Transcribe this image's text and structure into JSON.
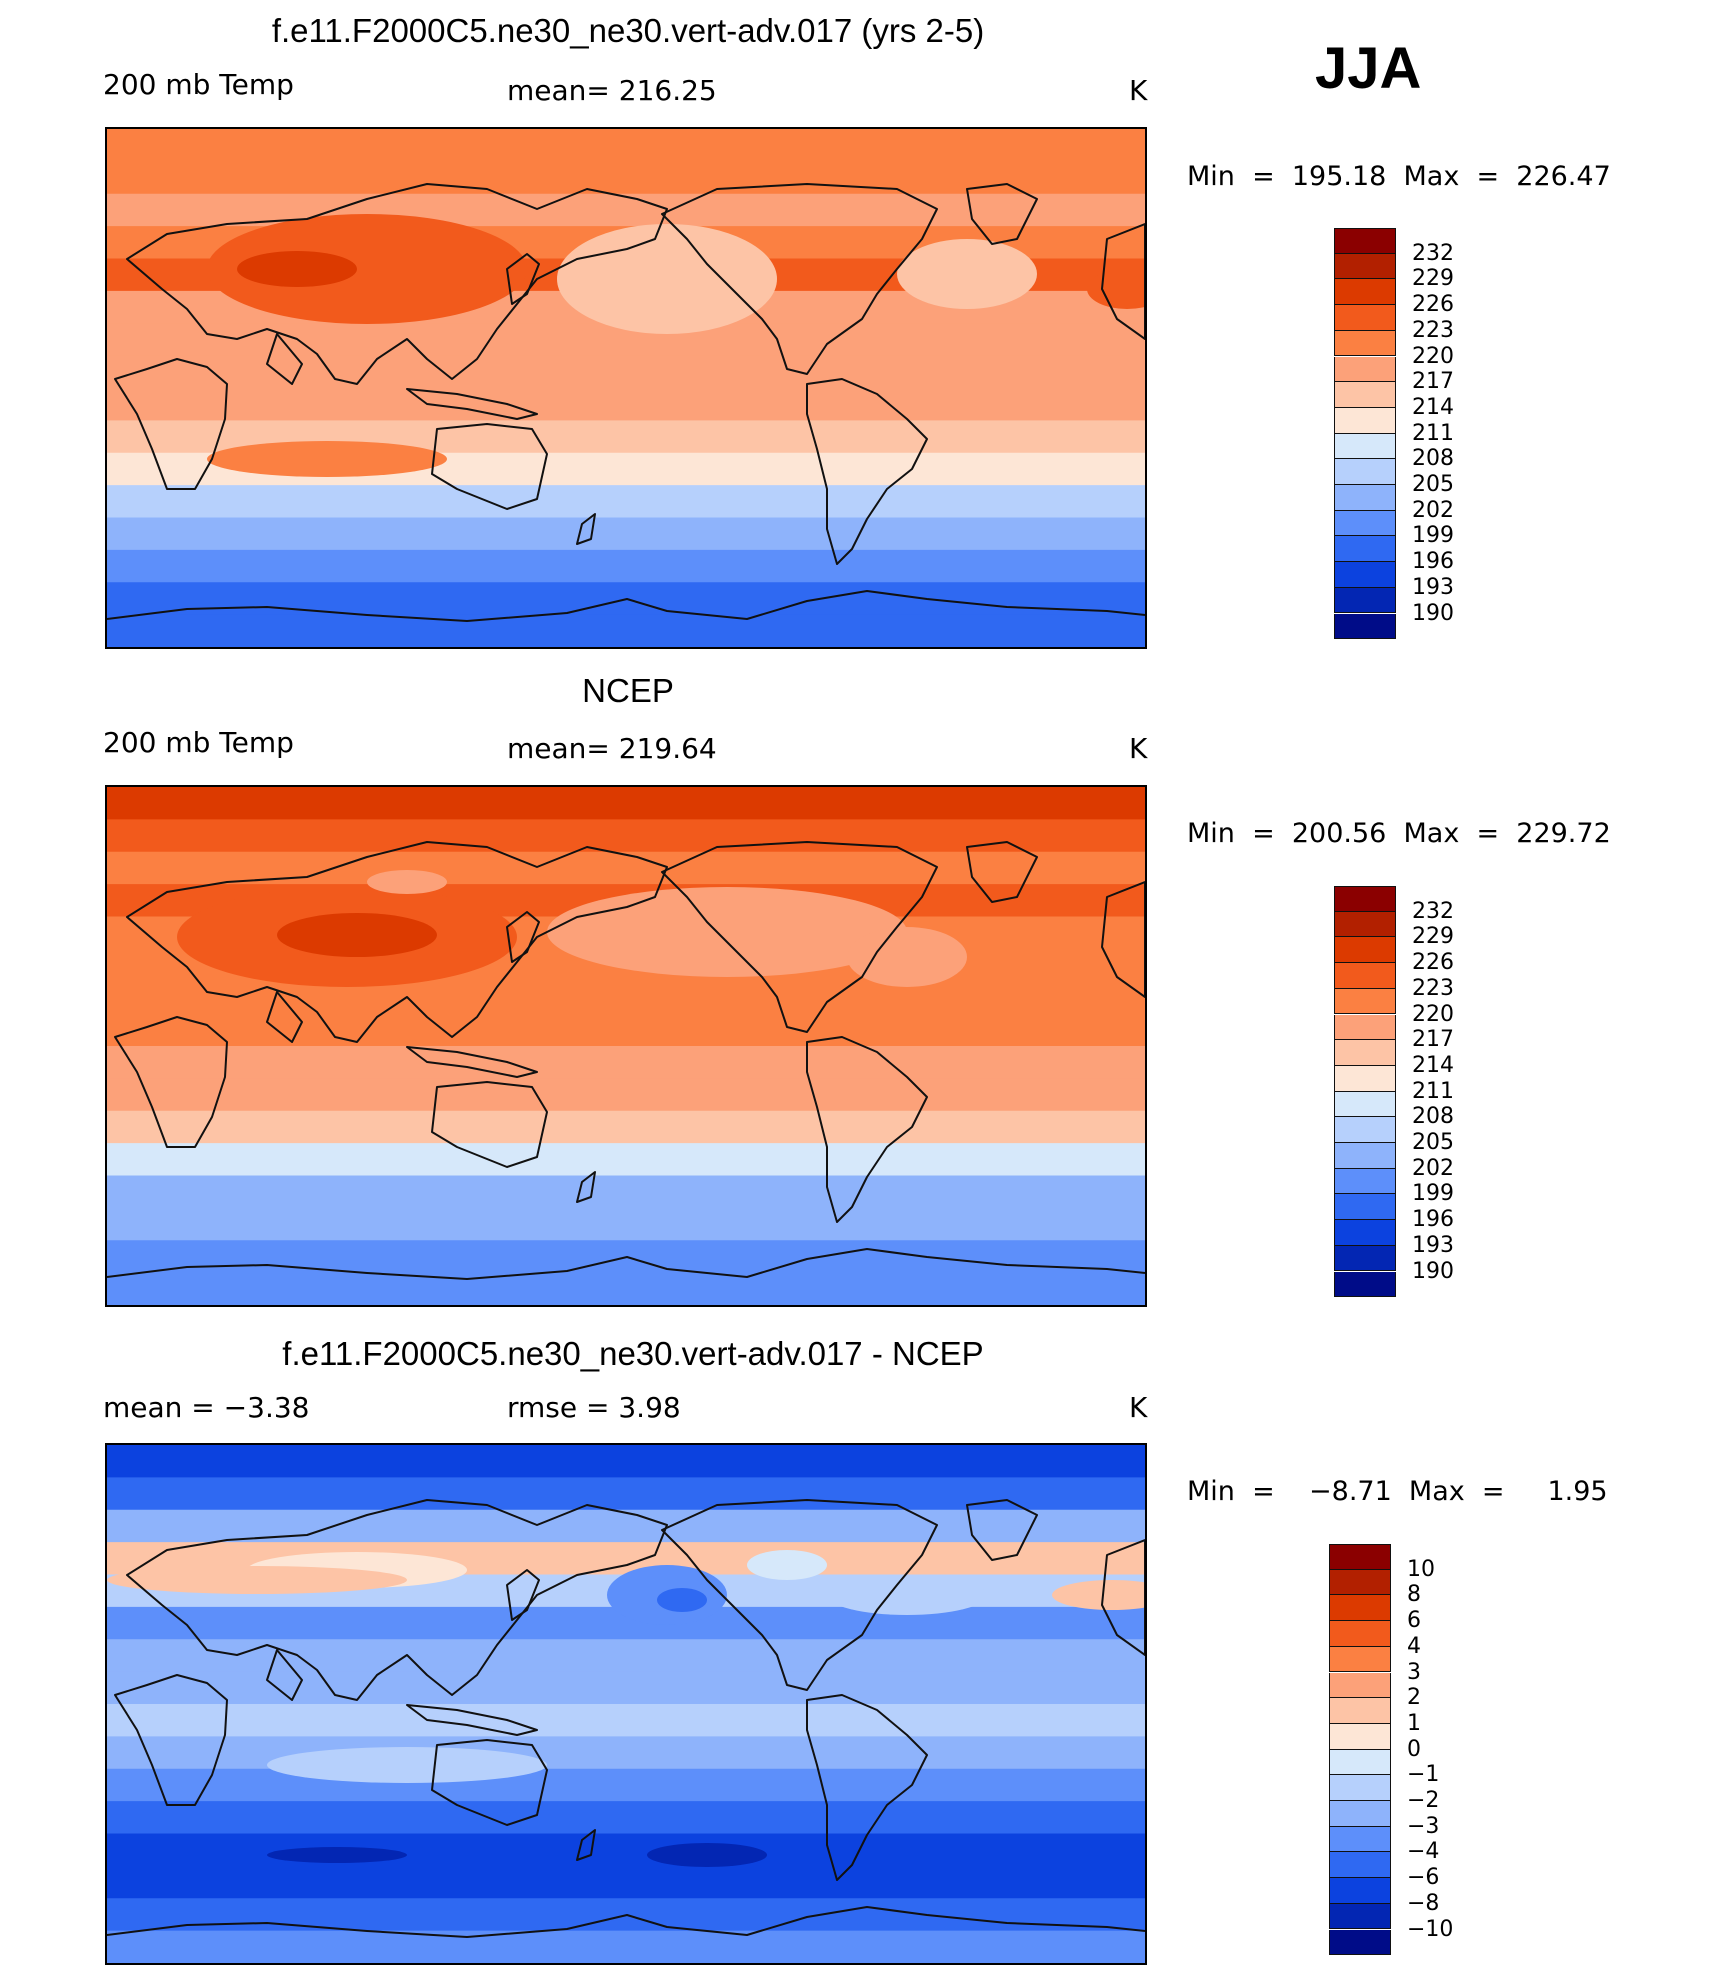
{
  "season": "JJA",
  "colors_temp": [
    "#8b0000",
    "#b22000",
    "#dc3a00",
    "#f25a1c",
    "#fb8042",
    "#fca179",
    "#fdc4a6",
    "#fde6d6",
    "#d6e8fa",
    "#b6d0fc",
    "#8eb3fb",
    "#5d8ffa",
    "#2f69f2",
    "#0c42df",
    "#0326b3",
    "#000c88"
  ],
  "colors_diff": [
    "#8b0000",
    "#b22000",
    "#dc3a00",
    "#f25a1c",
    "#fb8042",
    "#fca179",
    "#fdc4a6",
    "#fde6d6",
    "#d6e8fa",
    "#b6d0fc",
    "#8eb3fb",
    "#5d8ffa",
    "#2f69f2",
    "#0c42df",
    "#0326b3",
    "#000c88"
  ],
  "panels": [
    {
      "title": "f.e11.F2000C5.ne30_ne30.vert-adv.017 (yrs 2-5)",
      "left_label": "200 mb Temp",
      "center_label": "mean=  216.25",
      "units": "K",
      "minmax": "Min  =  195.18  Max  =  226.47",
      "legend_labels": [
        "232",
        "229",
        "226",
        "223",
        "220",
        "217",
        "214",
        "211",
        "208",
        "205",
        "202",
        "199",
        "196",
        "193",
        "190"
      ]
    },
    {
      "title": "NCEP",
      "left_label": "200 mb Temp",
      "center_label": "mean=  219.64",
      "units": "K",
      "minmax": "Min  =  200.56  Max  =  229.72",
      "legend_labels": [
        "232",
        "229",
        "226",
        "223",
        "220",
        "217",
        "214",
        "211",
        "208",
        "205",
        "202",
        "199",
        "196",
        "193",
        "190"
      ]
    },
    {
      "title": "f.e11.F2000C5.ne30_ne30.vert-adv.017 - NCEP",
      "left_label": "mean  =    −3.38",
      "center_label": "rmse  =     3.98",
      "units": "K",
      "minmax": "Min  =    −8.71  Max  =     1.95",
      "legend_labels": [
        "10",
        "8",
        "6",
        "4",
        "3",
        "2",
        "1",
        "0",
        "−1",
        "−2",
        "−3",
        "−4",
        "−6",
        "−8",
        "−10"
      ]
    }
  ],
  "map_data": [
    {
      "field": "model 200 mb temperature (K)",
      "band_colors": [
        "#fb8042",
        "#fb8042",
        "#fca179",
        "#fb8042",
        "#f25a1c",
        "#fca179",
        "#fca179",
        "#fca179",
        "#fca179",
        "#fdc4a6",
        "#fde6d6",
        "#b6d0fc",
        "#8eb3fb",
        "#5d8ffa",
        "#2f69f2",
        "#2f69f2"
      ]
    },
    {
      "field": "NCEP 200 mb temperature (K)",
      "band_colors": [
        "#dc3a00",
        "#f25a1c",
        "#fb8042",
        "#f25a1c",
        "#fb8042",
        "#fb8042",
        "#fb8042",
        "#fb8042",
        "#fca179",
        "#fca179",
        "#fdc4a6",
        "#d6e8fa",
        "#8eb3fb",
        "#8eb3fb",
        "#5d8ffa",
        "#5d8ffa"
      ]
    },
    {
      "field": "difference (K)",
      "band_colors": [
        "#0c42df",
        "#2f69f2",
        "#8eb3fb",
        "#fdc4a6",
        "#b6d0fc",
        "#5d8ffa",
        "#8eb3fb",
        "#8eb3fb",
        "#b6d0fc",
        "#8eb3fb",
        "#5d8ffa",
        "#2f69f2",
        "#0c42df",
        "#0c42df",
        "#2f69f2",
        "#5d8ffa"
      ]
    }
  ]
}
